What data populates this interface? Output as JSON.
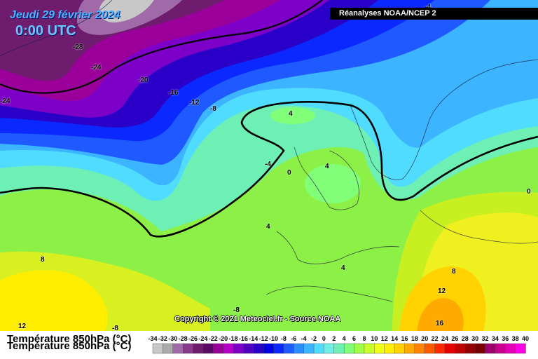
{
  "header": {
    "date": "Jeudi 29 février 2024",
    "time": "0:00 UTC",
    "source": "Réanalyses NOAA/NCEP 2"
  },
  "footer": {
    "copyright": "Copyright © 2021 Meteociel.fr - Source NOAA",
    "variable_label": "Température 850hPa (°C)"
  },
  "map": {
    "isotherm_labels": [
      "-4",
      "-28",
      "-24",
      "-20",
      "-16",
      "-12",
      "-8",
      "-24",
      "4",
      "-4",
      "0",
      "4",
      "4",
      "0",
      "8",
      "4",
      "8",
      "12",
      "16",
      "12",
      "-8",
      "-8"
    ]
  },
  "legend": {
    "ticks": [
      "-34",
      "-32",
      "-30",
      "-28",
      "-26",
      "-24",
      "-22",
      "-20",
      "-18",
      "-16",
      "-14",
      "-12",
      "-10",
      "-8",
      "-6",
      "-4",
      "-2",
      "0",
      "2",
      "4",
      "6",
      "8",
      "10",
      "12",
      "14",
      "16",
      "18",
      "20",
      "22",
      "24",
      "26",
      "28",
      "30",
      "32",
      "34",
      "36",
      "38",
      "40"
    ],
    "colors": [
      "#c8c8c8",
      "#aaaaaa",
      "#a06aa8",
      "#8a3a8a",
      "#6e1c6e",
      "#5a0a64",
      "#9b009b",
      "#b400c8",
      "#7d00c8",
      "#5000be",
      "#2a00c8",
      "#0000e6",
      "#0a28ff",
      "#1e5aff",
      "#2d8cff",
      "#3cb4ff",
      "#50dcff",
      "#6ef0e6",
      "#6ef0b4",
      "#82ff78",
      "#a0ff46",
      "#c8ff28",
      "#f0ff14",
      "#ffee00",
      "#ffd200",
      "#ffaa00",
      "#ff8200",
      "#ff5a00",
      "#ff2800",
      "#e60000",
      "#be0000",
      "#960000",
      "#7a0000",
      "#a0006e",
      "#c8008c",
      "#e600b4",
      "#ff00e6"
    ]
  }
}
